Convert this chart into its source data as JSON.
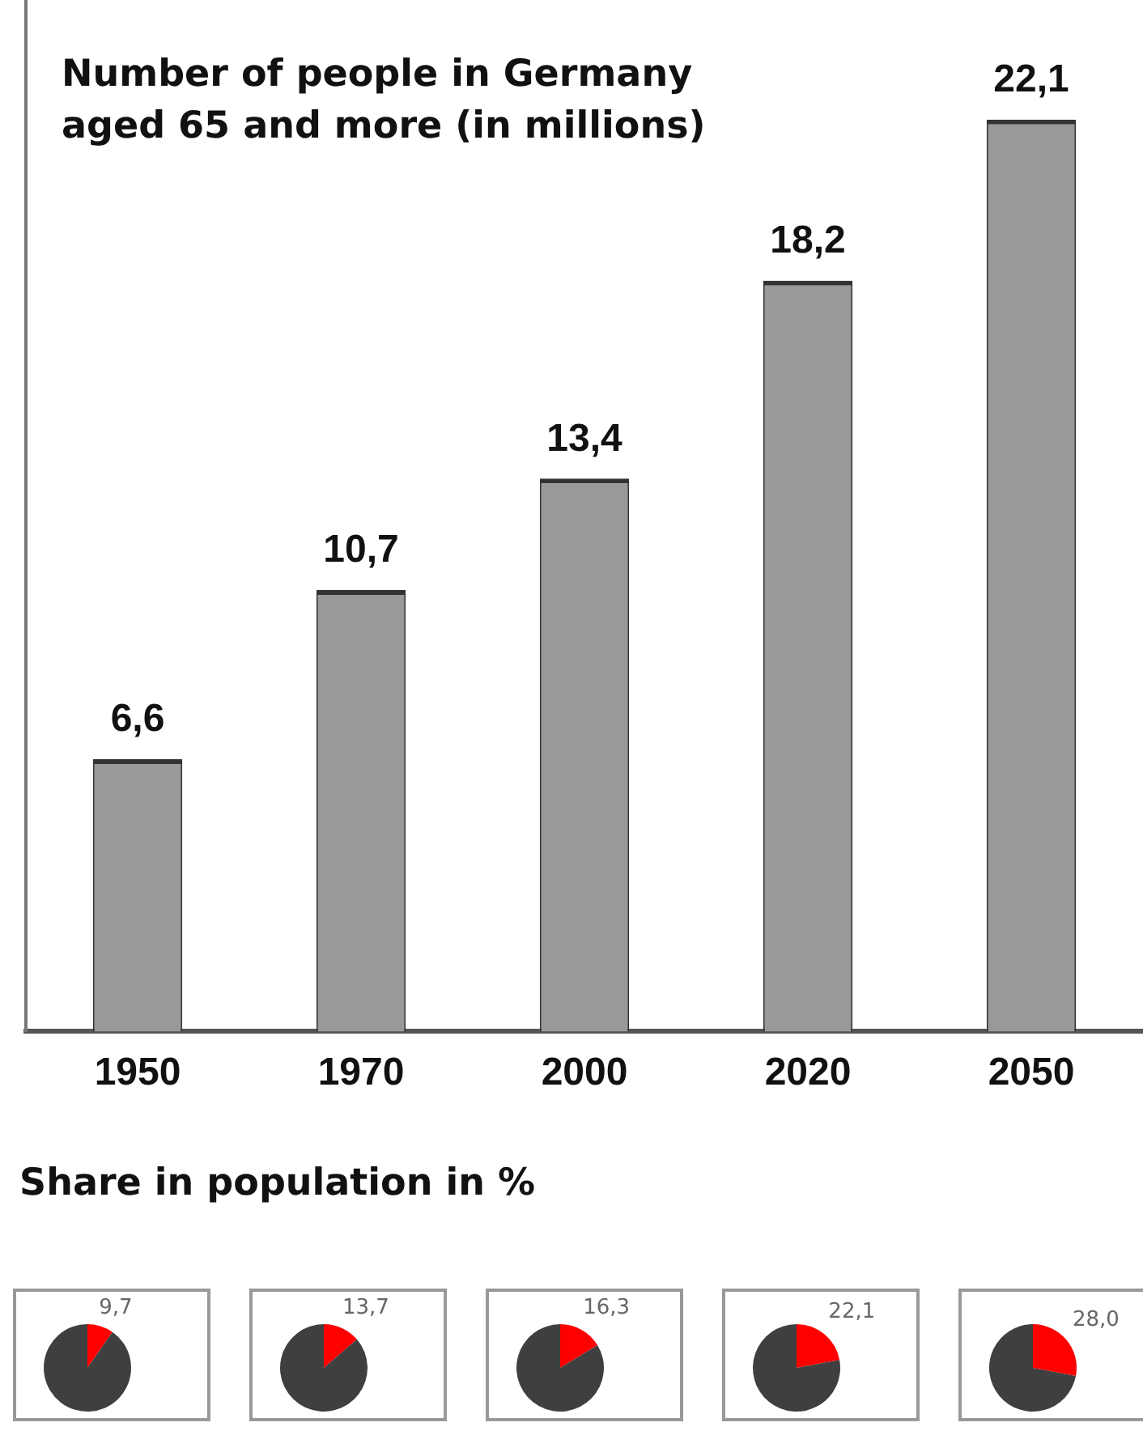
{
  "chart_data": [
    {
      "type": "bar",
      "title": "Number of people in Germany aged 65 and more (in millions)",
      "categories": [
        "1950",
        "1970",
        "2000",
        "2020",
        "2050"
      ],
      "values": [
        6.6,
        10.7,
        13.4,
        18.2,
        22.1
      ],
      "value_labels": [
        "6,6",
        "10,7",
        "13,4",
        "18,2",
        "22,1"
      ],
      "color": "#999999",
      "grid": false,
      "legend": false,
      "annotations": [
        "Share in population in %"
      ]
    },
    {
      "type": "pie",
      "categories": [
        null,
        null
      ],
      "values": [
        9.7,
        90.3
      ],
      "colors": [
        "#ff0000",
        "#3f3f3f"
      ],
      "value_labels": [
        "9,7",
        null
      ],
      "legend": false
    },
    {
      "type": "pie",
      "categories": [
        null,
        null
      ],
      "values": [
        13.7,
        86.3
      ],
      "colors": [
        "#ff0000",
        "#3f3f3f"
      ],
      "value_labels": [
        "13,7",
        null
      ],
      "legend": false
    },
    {
      "type": "pie",
      "categories": [
        null,
        null
      ],
      "values": [
        16.3,
        83.7
      ],
      "colors": [
        "#ff0000",
        "#3f3f3f"
      ],
      "value_labels": [
        "16,3",
        null
      ],
      "legend": false
    },
    {
      "type": "pie",
      "categories": [
        null,
        null
      ],
      "values": [
        22.1,
        77.9
      ],
      "colors": [
        "#ff0000",
        "#3f3f3f"
      ],
      "value_labels": [
        "22,1",
        null
      ],
      "legend": false
    },
    {
      "type": "pie",
      "categories": [
        null,
        null
      ],
      "values": [
        28.0,
        72.0
      ],
      "colors": [
        "#ff0000",
        "#3f3f3f"
      ],
      "value_labels": [
        "28,0",
        null
      ],
      "legend": false
    }
  ]
}
